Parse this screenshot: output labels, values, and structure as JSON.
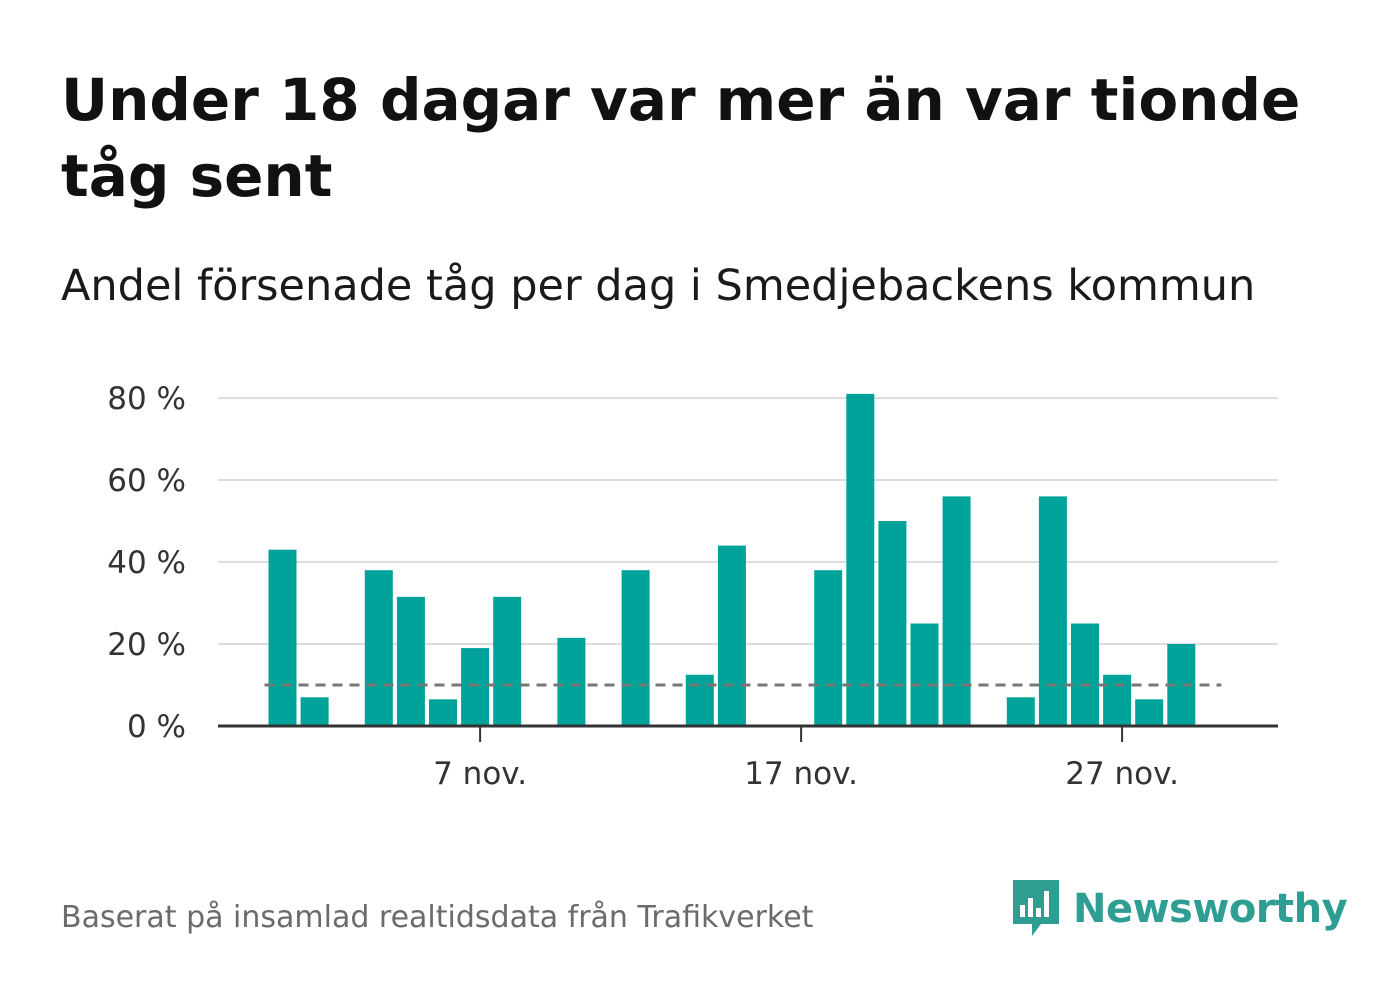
{
  "header": {
    "title": "Under 18 dagar var mer än var tionde tåg sent",
    "subtitle": "Andel försenade tåg per dag i Smedjebackens kommun"
  },
  "footer": {
    "source": "Baserat på insamlad realtidsdata från Trafikverket",
    "brand": "Newsworthy"
  },
  "colors": {
    "bar": "#00a39a",
    "reference_line": "#777777",
    "grid": "#dddddd",
    "axis": "#333333",
    "brand": "#2f9e92"
  },
  "chart_data": {
    "type": "bar",
    "title": "Under 18 dagar var mer än var tionde tåg sent",
    "subtitle": "Andel försenade tåg per dag i Smedjebackens kommun",
    "x_unit": "day of November",
    "categories": [
      1,
      2,
      3,
      4,
      5,
      6,
      7,
      8,
      9,
      10,
      11,
      12,
      13,
      14,
      15,
      16,
      17,
      18,
      19,
      20,
      21,
      22,
      23,
      24,
      25,
      26,
      27,
      28,
      29,
      30
    ],
    "values": [
      43,
      7,
      null,
      38,
      31.5,
      6.5,
      19,
      31.5,
      null,
      21.5,
      null,
      38,
      null,
      12.5,
      44,
      null,
      null,
      38,
      81,
      50,
      25,
      56,
      null,
      7,
      56,
      25,
      12.5,
      6.5,
      20,
      null
    ],
    "reference_value": 10,
    "ylim": [
      0,
      80
    ],
    "y_ticks": [
      0,
      20,
      40,
      60,
      80
    ],
    "y_tick_labels": [
      "0 %",
      "20 %",
      "40 %",
      "60 %",
      "80 %"
    ],
    "x_ticks": [
      7,
      17,
      27
    ],
    "x_tick_labels": [
      "7 nov.",
      "17 nov.",
      "27 nov."
    ],
    "grid": "horizontal",
    "legend": "none"
  }
}
